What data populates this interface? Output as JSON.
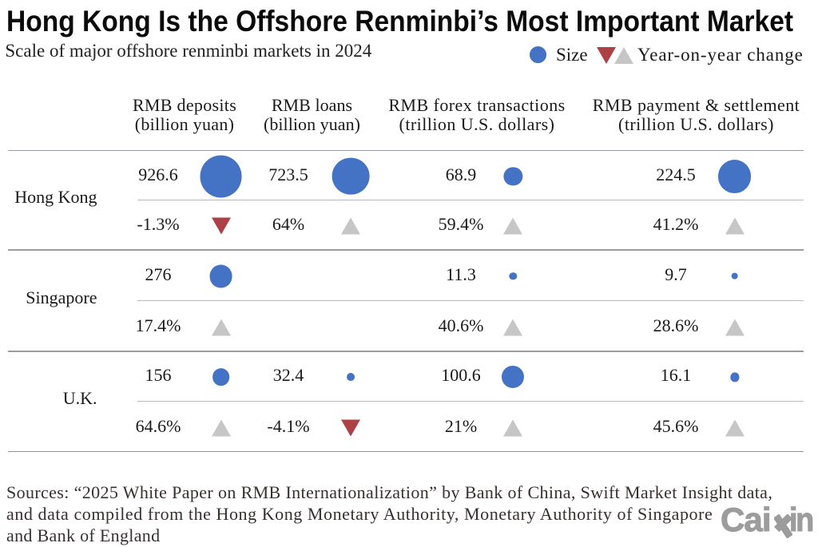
{
  "title": "Hong Kong Is the Offshore Renminbi’s Most Important Market",
  "subtitle": "Scale of major offshore renminbi markets in 2024",
  "legend": {
    "size_label": "Size",
    "change_label": "Year-on-year change"
  },
  "columns": [
    {
      "line1": "RMB deposits",
      "line2": "(billion yuan)",
      "unit": "billion_yuan"
    },
    {
      "line1": "RMB loans",
      "line2": "(billion yuan)",
      "unit": "billion_yuan"
    },
    {
      "line1": "RMB forex transactions",
      "line2": "(trillion U.S. dollars)",
      "unit": "trillion_usd"
    },
    {
      "line1": "RMB payment & settlement",
      "line2": "(trillion U.S. dollars)",
      "unit": "trillion_usd"
    }
  ],
  "chart_data": {
    "type": "table",
    "title": "Hong Kong Is the Offshore Renminbi’s Most Important Market",
    "subtitle": "Scale of major offshore renminbi markets in 2024",
    "columns": [
      "RMB deposits (billion yuan)",
      "RMB loans (billion yuan)",
      "RMB forex transactions (trillion U.S. dollars)",
      "RMB payment & settlement (trillion U.S. dollars)"
    ],
    "rows": [
      {
        "market": "Hong Kong",
        "cells": [
          {
            "value": 926.6,
            "value_label": "926.6",
            "change_label": "-1.3%",
            "direction": "down"
          },
          {
            "value": 723.5,
            "value_label": "723.5",
            "change_label": "64%",
            "direction": "up"
          },
          {
            "value": 68.9,
            "value_label": "68.9",
            "change_label": "59.4%",
            "direction": "up"
          },
          {
            "value": 224.5,
            "value_label": "224.5",
            "change_label": "41.2%",
            "direction": "up"
          }
        ]
      },
      {
        "market": "Singapore",
        "cells": [
          {
            "value": 276,
            "value_label": "276",
            "change_label": "17.4%",
            "direction": "up"
          },
          null,
          {
            "value": 11.3,
            "value_label": "11.3",
            "change_label": "40.6%",
            "direction": "up"
          },
          {
            "value": 9.7,
            "value_label": "9.7",
            "change_label": "28.6%",
            "direction": "up"
          }
        ]
      },
      {
        "market": "U.K.",
        "cells": [
          {
            "value": 156,
            "value_label": "156",
            "change_label": "64.6%",
            "direction": "up"
          },
          {
            "value": 32.4,
            "value_label": "32.4",
            "change_label": "-4.1%",
            "direction": "down"
          },
          {
            "value": 100.6,
            "value_label": "100.6",
            "change_label": "21%",
            "direction": "up"
          },
          {
            "value": 16.1,
            "value_label": "16.1",
            "change_label": "45.6%",
            "direction": "up"
          }
        ]
      }
    ],
    "bubble_scale": {
      "billion_yuan": 1.74,
      "trillion_usd": 2.8
    },
    "legend": [
      "Size",
      "Year-on-year change"
    ]
  },
  "colors": {
    "bubble": "#4472c4",
    "up_triangle": "#c6c6c6",
    "down_triangle": "#ad4045",
    "text": "#1a1a1a",
    "rule_strong": "#8a9095",
    "rule_mid": "#b5babe",
    "rule_bottom": "#7a8186",
    "logo": "#9c9c9c"
  },
  "sources_lines": [
    "Sources: “2025 White Paper on RMB Internationalization” by Bank of China, Swift Market Insight data,",
    "and data compiled from the Hong Kong Monetary Authority, Monetary Authority of Singapore",
    "and Bank of England"
  ],
  "logo_text": "Caixin",
  "logo_part1": "Cai",
  "logo_part2": "in"
}
